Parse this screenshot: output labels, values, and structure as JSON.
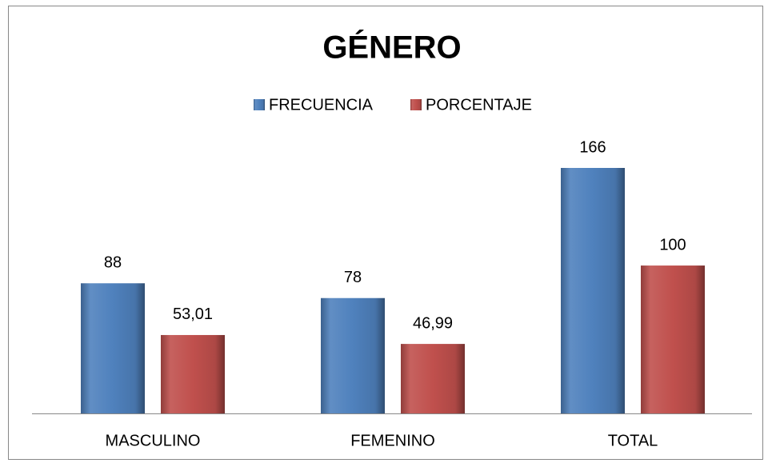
{
  "chart_data": {
    "type": "bar",
    "title": "GÉNERO",
    "categories": [
      "MASCULINO",
      "FEMENINO",
      "TOTAL"
    ],
    "series": [
      {
        "name": "FRECUENCIA",
        "color": "#4f81bd",
        "values": [
          88,
          78,
          166
        ]
      },
      {
        "name": "PORCENTAJE",
        "color": "#c0504d",
        "values": [
          53.01,
          46.99,
          100
        ],
        "value_labels": [
          "53,01",
          "46,99",
          "100"
        ]
      }
    ],
    "legend": "top"
  }
}
